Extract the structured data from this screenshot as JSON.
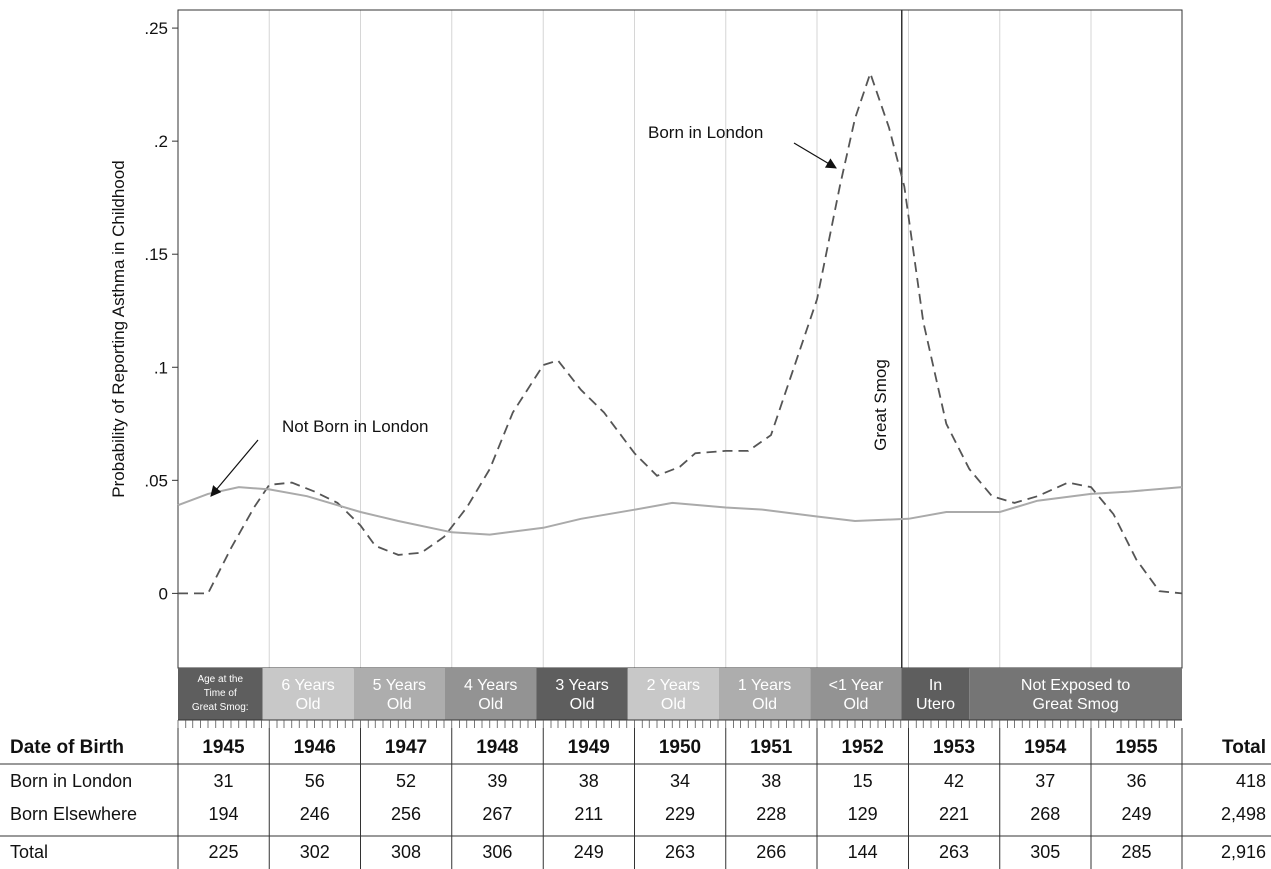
{
  "chart_data": {
    "type": "line",
    "ylabel": "Probability of Reporting Asthma in Childhood",
    "ylim": [
      -0.033,
      0.258
    ],
    "y_ticks": [
      {
        "value": 0,
        "label": "0"
      },
      {
        "value": 0.05,
        "label": ".05"
      },
      {
        "value": 0.1,
        "label": ".1"
      },
      {
        "value": 0.15,
        "label": ".15"
      },
      {
        "value": 0.2,
        "label": ".2"
      },
      {
        "value": 0.25,
        "label": ".25"
      }
    ],
    "xlim": [
      "1945-01-01",
      "1955-12-31"
    ],
    "grid": "vertical lines at year boundaries",
    "vertical_marker": {
      "date": "1952-12-05",
      "label": "Great Smog"
    },
    "series": [
      {
        "name": "Born in London",
        "style": "dashed",
        "color": "#555555",
        "x": [
          "1945-01-01",
          "1945-05-01",
          "1945-08-01",
          "1945-11-01",
          "1946-01-01",
          "1946-04-01",
          "1946-07-01",
          "1946-10-01",
          "1947-01-01",
          "1947-03-01",
          "1947-06-01",
          "1947-09-01",
          "1947-12-01",
          "1948-03-01",
          "1948-06-01",
          "1948-09-01",
          "1949-01-01",
          "1949-03-01",
          "1949-06-01",
          "1949-09-01",
          "1950-01-01",
          "1950-04-01",
          "1950-07-01",
          "1950-09-01",
          "1951-01-01",
          "1951-04-01",
          "1951-07-01",
          "1951-10-01",
          "1952-01-01",
          "1952-04-01",
          "1952-06-01",
          "1952-08-01",
          "1952-10-15",
          "1952-12-15",
          "1953-03-01",
          "1953-06-01",
          "1953-09-01",
          "1953-12-01",
          "1954-03-01",
          "1954-06-01",
          "1954-10-01",
          "1955-01-01",
          "1955-04-01",
          "1955-07-01",
          "1955-10-01",
          "1955-12-31"
        ],
        "y": [
          0.0,
          0.0,
          0.02,
          0.038,
          0.048,
          0.049,
          0.045,
          0.04,
          0.03,
          0.021,
          0.017,
          0.018,
          0.025,
          0.038,
          0.055,
          0.08,
          0.101,
          0.103,
          0.09,
          0.08,
          0.062,
          0.052,
          0.056,
          0.062,
          0.063,
          0.063,
          0.07,
          0.1,
          0.13,
          0.18,
          0.21,
          0.23,
          0.206,
          0.18,
          0.12,
          0.075,
          0.055,
          0.043,
          0.04,
          0.043,
          0.049,
          0.047,
          0.035,
          0.015,
          0.001,
          0.0
        ]
      },
      {
        "name": "Not Born in London",
        "style": "solid",
        "color": "#aaaaaa",
        "x": [
          "1945-01-01",
          "1945-05-01",
          "1945-09-01",
          "1946-01-01",
          "1946-06-01",
          "1947-01-01",
          "1947-06-01",
          "1948-01-01",
          "1948-06-01",
          "1949-01-01",
          "1949-06-01",
          "1950-01-01",
          "1950-06-01",
          "1951-01-01",
          "1951-06-01",
          "1952-01-01",
          "1952-06-01",
          "1953-01-01",
          "1953-06-01",
          "1954-01-01",
          "1954-06-01",
          "1955-01-01",
          "1955-06-01",
          "1955-12-31"
        ],
        "y": [
          0.039,
          0.044,
          0.047,
          0.046,
          0.043,
          0.036,
          0.032,
          0.027,
          0.026,
          0.029,
          0.033,
          0.037,
          0.04,
          0.038,
          0.037,
          0.034,
          0.032,
          0.033,
          0.036,
          0.036,
          0.041,
          0.044,
          0.045,
          0.047
        ]
      }
    ],
    "annotations": [
      {
        "text": "Born in London",
        "target_series": "Born in London",
        "position": "upper center-right, arrow pointing down-right to peak"
      },
      {
        "text": "Not Born in London",
        "target_series": "Not Born in London",
        "position": "left middle, arrow pointing down-left to curve"
      }
    ],
    "age_bands": {
      "title": "Age at the Time of Great Smog:",
      "items": [
        {
          "label": "6 Years Old",
          "start": "1945-12-05",
          "end": "1946-12-05",
          "color": "#c8c8c8"
        },
        {
          "label": "5 Years Old",
          "start": "1946-12-05",
          "end": "1947-12-05",
          "color": "#adadad"
        },
        {
          "label": "4 Years Old",
          "start": "1947-12-05",
          "end": "1948-12-05",
          "color": "#939393"
        },
        {
          "label": "3 Years Old",
          "start": "1948-12-05",
          "end": "1949-12-05",
          "color": "#5e5e5e"
        },
        {
          "label": "2 Years Old",
          "start": "1949-12-05",
          "end": "1950-12-05",
          "color": "#c8c8c8"
        },
        {
          "label": "1 Years Old",
          "start": "1950-12-05",
          "end": "1951-12-05",
          "color": "#adadad"
        },
        {
          "label": "<1 Year Old",
          "start": "1951-12-05",
          "end": "1952-12-05",
          "color": "#939393"
        },
        {
          "label": "In Utero",
          "start": "1952-12-05",
          "end": "1953-09-01",
          "color": "#5e5e5e"
        },
        {
          "label": "Not Exposed to Great Smog",
          "start": "1953-09-01",
          "end": "1955-12-31",
          "color": "#757575"
        }
      ],
      "title_color": "#5e5e5e"
    }
  },
  "table": {
    "header_label": "Date of Birth",
    "years": [
      "1945",
      "1946",
      "1947",
      "1948",
      "1949",
      "1950",
      "1951",
      "1952",
      "1953",
      "1954",
      "1955"
    ],
    "total_header": "Total",
    "rows": [
      {
        "label": "Born in London",
        "values": [
          "31",
          "56",
          "52",
          "39",
          "38",
          "34",
          "38",
          "15",
          "42",
          "37",
          "36"
        ],
        "total": "418"
      },
      {
        "label": "Born Elsewhere",
        "values": [
          "194",
          "246",
          "256",
          "267",
          "211",
          "229",
          "228",
          "129",
          "221",
          "268",
          "249"
        ],
        "total": "2,498"
      },
      {
        "label": "Total",
        "values": [
          "225",
          "302",
          "308",
          "306",
          "249",
          "263",
          "266",
          "144",
          "263",
          "305",
          "285"
        ],
        "total": "2,916"
      }
    ]
  }
}
